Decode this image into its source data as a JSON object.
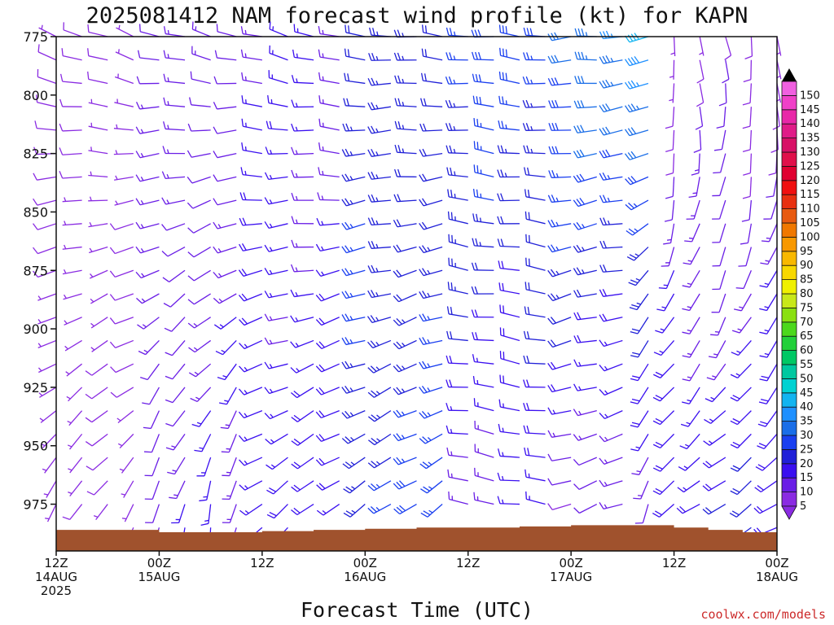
{
  "chart_data": {
    "type": "wind_barb_profile",
    "title": "2025081412 NAM forecast wind profile (kt) for KAPN",
    "xlabel": "Forecast Time (UTC)",
    "credit": "coolwx.com/models",
    "y_axis": {
      "ticks": [
        775,
        800,
        825,
        850,
        875,
        900,
        925,
        950,
        975
      ],
      "range_hpa": [
        775,
        995
      ],
      "inverted": true
    },
    "x_axis": {
      "range_hours": [
        0,
        84
      ],
      "ticks": [
        {
          "hour": 0,
          "line1": "12Z",
          "line2": "14AUG",
          "line3": "2025"
        },
        {
          "hour": 12,
          "line1": "00Z",
          "line2": "15AUG",
          "line3": ""
        },
        {
          "hour": 24,
          "line1": "12Z",
          "line2": "",
          "line3": ""
        },
        {
          "hour": 36,
          "line1": "00Z",
          "line2": "16AUG",
          "line3": ""
        },
        {
          "hour": 48,
          "line1": "12Z",
          "line2": "",
          "line3": ""
        },
        {
          "hour": 60,
          "line1": "00Z",
          "line2": "17AUG",
          "line3": ""
        },
        {
          "hour": 72,
          "line1": "12Z",
          "line2": "",
          "line3": ""
        },
        {
          "hour": 84,
          "line1": "00Z",
          "line2": "18AUG",
          "line3": ""
        }
      ]
    },
    "colorbar": {
      "unit": "kt",
      "labels": [
        "5",
        "10",
        "15",
        "20",
        "25",
        "30",
        "35",
        "40",
        "45",
        "50",
        "55",
        "60",
        "65",
        "70",
        "75",
        "80",
        "85",
        "90",
        "95",
        "100",
        "105",
        "110",
        "115",
        "120",
        "125",
        "130",
        "135",
        "140",
        "145",
        "150"
      ],
      "colors": [
        "#8a2be2",
        "#6a1ee6",
        "#3a0ff0",
        "#2020d8",
        "#1a3ff0",
        "#1a6ee8",
        "#1e90ff",
        "#12b4f0",
        "#00d2d2",
        "#00c8a0",
        "#00c864",
        "#22d03a",
        "#4cd81c",
        "#8ae010",
        "#c8e81a",
        "#f0f000",
        "#f8d800",
        "#f8b800",
        "#f89800",
        "#f07800",
        "#e85a10",
        "#e83010",
        "#f01010",
        "#e00030",
        "#e0104a",
        "#d81066",
        "#e01c88",
        "#e828a8",
        "#f040c8",
        "#f060e0"
      ]
    },
    "terrain": {
      "color": "#a0522d",
      "surface_pressure_hpa": [
        {
          "hour": 0,
          "p": 986
        },
        {
          "hour": 12,
          "p": 987
        },
        {
          "hour": 24,
          "p": 986.5
        },
        {
          "hour": 30,
          "p": 986
        },
        {
          "hour": 36,
          "p": 985.5
        },
        {
          "hour": 42,
          "p": 985
        },
        {
          "hour": 48,
          "p": 985
        },
        {
          "hour": 54,
          "p": 984.5
        },
        {
          "hour": 60,
          "p": 984
        },
        {
          "hour": 66,
          "p": 984
        },
        {
          "hour": 72,
          "p": 985
        },
        {
          "hour": 76,
          "p": 986
        },
        {
          "hour": 80,
          "p": 987
        },
        {
          "hour": 84,
          "p": 987
        }
      ]
    },
    "wind_regimes": [
      {
        "hours": [
          0,
          12
        ],
        "low_dir": 210,
        "low_spd": 6,
        "high_dir": 290,
        "high_spd": 8
      },
      {
        "hours": [
          12,
          24
        ],
        "low_dir": 190,
        "low_spd": 14,
        "high_dir": 285,
        "high_spd": 12
      },
      {
        "hours": [
          24,
          36
        ],
        "low_dir": 230,
        "low_spd": 18,
        "high_dir": 285,
        "high_spd": 15
      },
      {
        "hours": [
          36,
          48
        ],
        "low_dir": 235,
        "low_spd": 26,
        "high_dir": 275,
        "high_spd": 22
      },
      {
        "hours": [
          48,
          60
        ],
        "low_dir": 280,
        "low_spd": 14,
        "high_dir": 275,
        "high_spd": 28
      },
      {
        "hours": [
          60,
          69
        ],
        "low_dir": 250,
        "low_spd": 10,
        "high_dir": 265,
        "high_spd": 34
      },
      {
        "hours": [
          69,
          72
        ],
        "low_dir": 190,
        "low_spd": 8,
        "high_dir": 260,
        "high_spd": 40
      },
      {
        "hours": [
          72,
          84
        ],
        "low_dir": 240,
        "low_spd": 20,
        "high_dir": 170,
        "high_spd": 8
      }
    ]
  }
}
